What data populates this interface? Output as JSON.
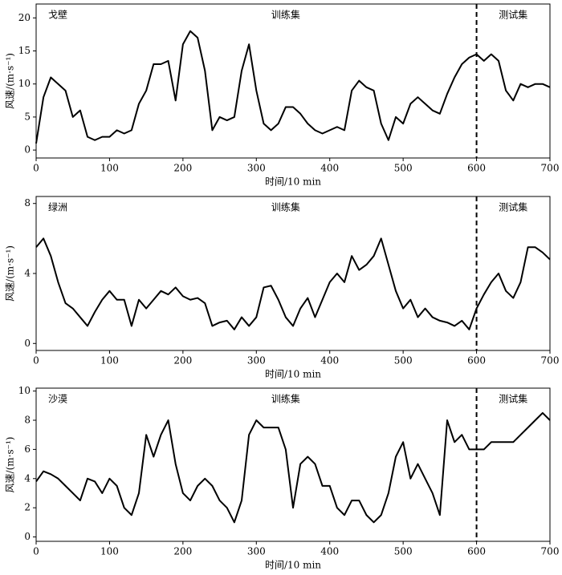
{
  "chart_data": [
    {
      "type": "line",
      "title": "戈壁",
      "annotations": [
        "训练集",
        "测试集"
      ],
      "x_label": "时间/10 min",
      "y_label": "风速/(m·s⁻¹)",
      "color": "#000000",
      "split_x": 600,
      "x": [
        0,
        10,
        20,
        30,
        40,
        50,
        60,
        70,
        80,
        90,
        100,
        110,
        120,
        130,
        140,
        150,
        160,
        170,
        180,
        190,
        200,
        210,
        220,
        230,
        240,
        250,
        260,
        270,
        280,
        290,
        300,
        310,
        320,
        330,
        340,
        350,
        360,
        370,
        380,
        390,
        400,
        410,
        420,
        430,
        440,
        450,
        460,
        470,
        480,
        490,
        500,
        510,
        520,
        530,
        540,
        550,
        560,
        570,
        580,
        590,
        600,
        610,
        620,
        630,
        640,
        650,
        660,
        670,
        680,
        690,
        700
      ],
      "values": [
        1,
        8,
        11,
        10,
        9,
        5,
        6,
        2,
        1.5,
        2,
        2,
        3,
        2.5,
        3,
        7,
        9,
        13,
        13,
        13.5,
        7.5,
        16,
        18,
        17,
        12,
        3,
        5,
        4.5,
        5,
        12,
        16,
        9,
        4,
        3,
        4,
        6.5,
        6.5,
        5.5,
        4,
        3,
        2.5,
        3,
        3.5,
        3,
        9,
        10.5,
        9.5,
        9,
        4,
        1.5,
        5,
        4,
        7,
        8,
        7,
        6,
        5.5,
        8.5,
        11,
        13,
        14,
        14.5,
        13.5,
        14.5,
        13.5,
        9,
        7.5,
        10,
        9.5,
        10,
        10,
        9.5
      ],
      "xlim": [
        0,
        700
      ],
      "xticks": [
        0,
        100,
        200,
        300,
        400,
        500,
        600,
        700
      ],
      "ylim": [
        -1.2,
        22.1
      ],
      "yticks": [
        0,
        5,
        10,
        15,
        20
      ]
    },
    {
      "type": "line",
      "title": "绿洲",
      "annotations": [
        "训练集",
        "测试集"
      ],
      "x_label": "时间/10 min",
      "y_label": "风速/(m·s⁻¹)",
      "color": "#000000",
      "split_x": 600,
      "x": [
        0,
        10,
        20,
        30,
        40,
        50,
        60,
        70,
        80,
        90,
        100,
        110,
        120,
        130,
        140,
        150,
        160,
        170,
        180,
        190,
        200,
        210,
        220,
        230,
        240,
        250,
        260,
        270,
        280,
        290,
        300,
        310,
        320,
        330,
        340,
        350,
        360,
        370,
        380,
        390,
        400,
        410,
        420,
        430,
        440,
        450,
        460,
        470,
        480,
        490,
        500,
        510,
        520,
        530,
        540,
        550,
        560,
        570,
        580,
        590,
        600,
        610,
        620,
        630,
        640,
        650,
        660,
        670,
        680,
        690,
        700
      ],
      "values": [
        5.5,
        6,
        5,
        3.5,
        2.3,
        2,
        1.5,
        1,
        1.8,
        2.5,
        3,
        2.5,
        2.5,
        1,
        2.5,
        2,
        2.5,
        3,
        2.8,
        3.2,
        2.7,
        2.5,
        2.6,
        2.3,
        1,
        1.2,
        1.3,
        0.8,
        1.5,
        1,
        1.5,
        3.2,
        3.3,
        2.5,
        1.5,
        1,
        2,
        2.6,
        1.5,
        2.5,
        3.5,
        4,
        3.5,
        5,
        4.2,
        4.5,
        5,
        6,
        4.5,
        3,
        2,
        2.5,
        1.5,
        2,
        1.5,
        1.3,
        1.2,
        1,
        1.3,
        0.8,
        2,
        2.8,
        3.5,
        4,
        3,
        2.6,
        3.5,
        5.5,
        5.5,
        5.2,
        4.8
      ],
      "xlim": [
        0,
        700
      ],
      "xticks": [
        0,
        100,
        200,
        300,
        400,
        500,
        600,
        700
      ],
      "ylim": [
        -0.4,
        8.4
      ],
      "yticks": [
        0,
        4,
        8
      ]
    },
    {
      "type": "line",
      "title": "沙漠",
      "annotations": [
        "训练集",
        "测试集"
      ],
      "x_label": "时间/10 min",
      "y_label": "风速/(m·s⁻¹)",
      "color": "#000000",
      "split_x": 600,
      "x": [
        0,
        10,
        20,
        30,
        40,
        50,
        60,
        70,
        80,
        90,
        100,
        110,
        120,
        130,
        140,
        150,
        160,
        170,
        180,
        190,
        200,
        210,
        220,
        230,
        240,
        250,
        260,
        270,
        280,
        290,
        300,
        310,
        320,
        330,
        340,
        350,
        360,
        370,
        380,
        390,
        400,
        410,
        420,
        430,
        440,
        450,
        460,
        470,
        480,
        490,
        500,
        510,
        520,
        530,
        540,
        550,
        560,
        570,
        580,
        590,
        600,
        610,
        620,
        630,
        640,
        650,
        660,
        670,
        680,
        690,
        700
      ],
      "values": [
        3.8,
        4.5,
        4.3,
        4,
        3.5,
        3,
        2.5,
        4,
        3.8,
        3,
        4,
        3.5,
        2,
        1.5,
        3,
        7,
        5.5,
        7,
        8,
        5,
        3,
        2.5,
        3.5,
        4,
        3.5,
        2.5,
        2,
        1,
        2.5,
        7,
        8,
        7.5,
        7.5,
        7.5,
        6,
        2,
        5,
        5.5,
        5,
        3.5,
        3.5,
        2,
        1.5,
        2.5,
        2.5,
        1.5,
        1,
        1.5,
        3,
        5.5,
        6.5,
        4,
        5,
        4,
        3,
        1.5,
        8,
        6.5,
        7,
        6,
        6,
        6,
        6.5,
        6.5,
        6.5,
        6.5,
        7,
        7.5,
        8,
        8.5,
        8
      ],
      "xlim": [
        0,
        700
      ],
      "xticks": [
        0,
        100,
        200,
        300,
        400,
        500,
        600,
        700
      ],
      "ylim": [
        -0.3,
        10.2
      ],
      "yticks": [
        0,
        2,
        4,
        6,
        8,
        10
      ]
    }
  ]
}
